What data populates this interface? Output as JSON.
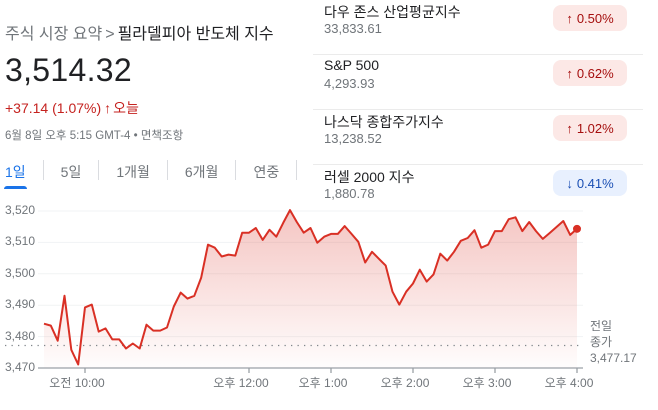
{
  "breadcrumb": {
    "parent": "주식 시장 요약",
    "separator": ">",
    "current": "필라델피아 반도체 지수"
  },
  "quote": {
    "price": "3,514.32",
    "change": "+37.14 (1.07%)",
    "change_arrow": "↑",
    "change_period": "오늘",
    "timestamp": "6월 8일 오후 5:15 GMT-4 • 면책조항",
    "up_color": "#c5221f"
  },
  "tabs": [
    {
      "label": "1일",
      "active": true
    },
    {
      "label": "5일",
      "active": false
    },
    {
      "label": "1개월",
      "active": false
    },
    {
      "label": "6개월",
      "active": false
    },
    {
      "label": "연중",
      "active": false
    }
  ],
  "markets": [
    {
      "name": "다우 존스 산업평균지수",
      "value": "33,833.61",
      "direction": "up",
      "arrow": "↑",
      "change": "0.50%"
    },
    {
      "name": "S&P 500",
      "value": "4,293.93",
      "direction": "up",
      "arrow": "↑",
      "change": "0.62%"
    },
    {
      "name": "나스닥 종합주가지수",
      "value": "13,238.52",
      "direction": "up",
      "arrow": "↑",
      "change": "1.02%"
    },
    {
      "name": "러셀 2000 지수",
      "value": "1,880.78",
      "direction": "down",
      "arrow": "↓",
      "change": "0.41%"
    }
  ],
  "chart": {
    "prev_close_label_1": "전일",
    "prev_close_label_2": "종가",
    "prev_close_value": "3,477.17",
    "line_color": "#d93025"
  },
  "chart_data": {
    "type": "area",
    "title": "필라델피아 반도체 지수 1일",
    "xlabel": "",
    "ylabel": "",
    "ylim": [
      3470,
      3520
    ],
    "yticks": [
      "3,470",
      "3,480",
      "3,490",
      "3,500",
      "3,510",
      "3,520"
    ],
    "xticks": [
      "오전 10:00",
      "오후 12:00",
      "오후 1:00",
      "오후 2:00",
      "오후 3:00",
      "오후 4:00"
    ],
    "grid": true,
    "legend": "none",
    "reference_line": {
      "label": "전일 종가",
      "value": 3477.17,
      "style": "dotted"
    },
    "series": [
      {
        "name": "필라델피아 반도체 지수",
        "x": [
          "09:30",
          "09:35",
          "09:40",
          "09:45",
          "09:50",
          "09:55",
          "10:00",
          "10:05",
          "10:10",
          "10:15",
          "10:20",
          "10:25",
          "10:30",
          "10:35",
          "10:40",
          "10:45",
          "10:50",
          "10:55",
          "11:00",
          "11:05",
          "11:10",
          "11:15",
          "11:20",
          "11:25",
          "11:30",
          "11:35",
          "11:40",
          "11:45",
          "11:50",
          "11:55",
          "12:00",
          "12:05",
          "12:10",
          "12:15",
          "12:20",
          "12:25",
          "12:30",
          "12:35",
          "12:40",
          "12:45",
          "12:50",
          "12:55",
          "13:00",
          "13:05",
          "13:10",
          "13:15",
          "13:20",
          "13:25",
          "13:30",
          "13:35",
          "13:40",
          "13:45",
          "13:50",
          "13:55",
          "14:00",
          "14:05",
          "14:10",
          "14:15",
          "14:20",
          "14:25",
          "14:30",
          "14:35",
          "14:40",
          "14:45",
          "14:50",
          "14:55",
          "15:00",
          "15:05",
          "15:10",
          "15:15",
          "15:20",
          "15:25",
          "15:30",
          "15:35",
          "15:40",
          "15:45",
          "15:50",
          "15:55",
          "16:00"
        ],
        "values": [
          3484.1,
          3483.5,
          3478.7,
          3493.0,
          3475.8,
          3471.1,
          3489.3,
          3490.2,
          3481.6,
          3482.6,
          3479.1,
          3479.1,
          3476.2,
          3477.8,
          3476.2,
          3483.8,
          3481.9,
          3481.9,
          3482.9,
          3489.6,
          3494.0,
          3492.1,
          3493.0,
          3498.8,
          3509.3,
          3508.3,
          3505.5,
          3506.1,
          3505.8,
          3513.1,
          3513.1,
          3514.6,
          3510.8,
          3514.0,
          3511.8,
          3516.2,
          3520.3,
          3516.5,
          3513.1,
          3514.6,
          3509.9,
          3511.8,
          3512.7,
          3512.7,
          3515.2,
          3512.7,
          3510.2,
          3503.6,
          3507.0,
          3504.8,
          3502.6,
          3494.3,
          3490.2,
          3494.3,
          3496.9,
          3501.3,
          3497.5,
          3499.8,
          3506.4,
          3504.2,
          3507.0,
          3510.5,
          3511.4,
          3513.9,
          3508.3,
          3509.3,
          3513.6,
          3513.6,
          3517.4,
          3518.0,
          3513.6,
          3516.5,
          3513.6,
          3511.1,
          3513.0,
          3514.9,
          3516.8,
          3512.4,
          3514.32
        ]
      }
    ]
  }
}
